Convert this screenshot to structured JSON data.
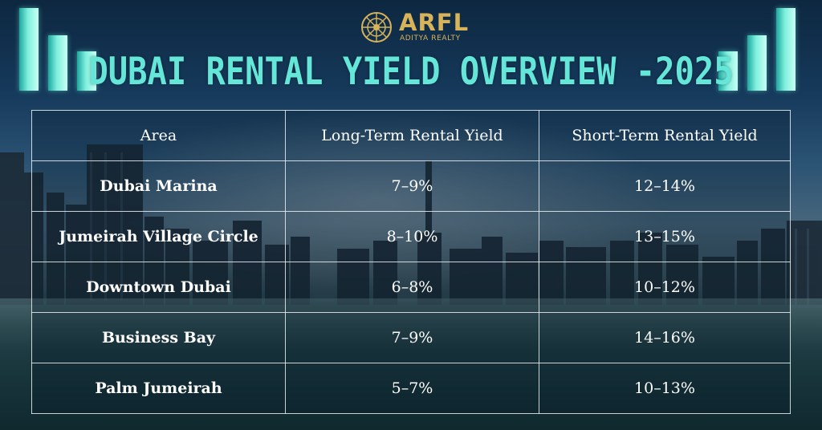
{
  "logo": {
    "brand": "ARFL",
    "subtitle": "ADITYA REALTY",
    "accent": "#d7b35a"
  },
  "title": "DUBAI RENTAL YIELD OVERVIEW -2025",
  "colors": {
    "title": "#64e6d9",
    "bars": "#7ff0dd",
    "table_border": "#ebf0f2"
  },
  "icons": [
    "logo-emblem-icon",
    "bar-chart-decoration-icon"
  ],
  "table": {
    "headers": [
      "Area",
      "Long-Term Rental Yield",
      "Short-Term Rental Yield"
    ],
    "rows": [
      [
        "Dubai Marina",
        "7–9%",
        "12–14%"
      ],
      [
        "Jumeirah Village Circle",
        "8–10%",
        "13–15%"
      ],
      [
        "Downtown Dubai",
        "6–8%",
        "10–12%"
      ],
      [
        "Business Bay",
        "7–9%",
        "14–16%"
      ],
      [
        "Palm Jumeirah",
        "5–7%",
        "10–13%"
      ]
    ]
  }
}
